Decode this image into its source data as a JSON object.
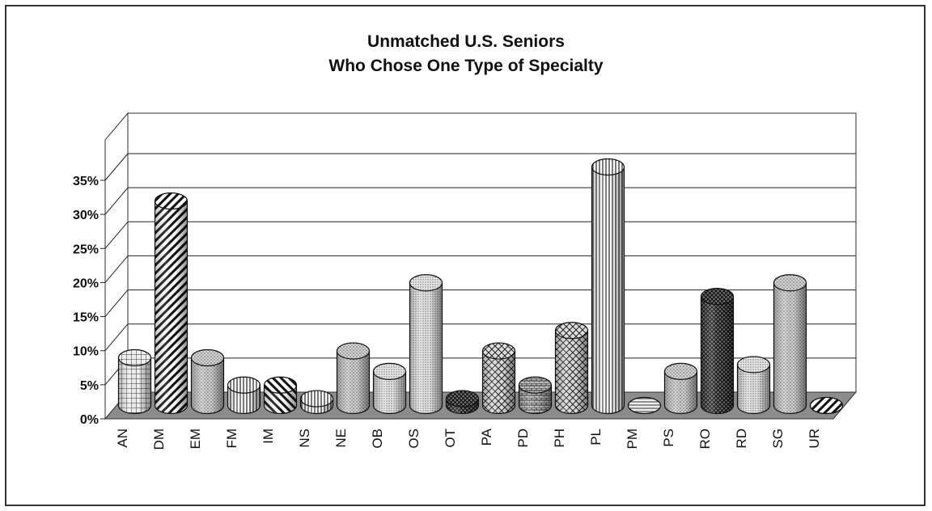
{
  "chart_data": {
    "type": "bar",
    "title_lines": [
      "Unmatched U.S. Seniors",
      "Who Chose One Type of Specialty"
    ],
    "categories": [
      "AN",
      "DM",
      "EM",
      "FM",
      "IM",
      "NS",
      "NE",
      "OB",
      "OS",
      "OT",
      "PA",
      "PD",
      "PH",
      "PL",
      "PM",
      "PS",
      "RO",
      "RD",
      "SG",
      "UR"
    ],
    "values": [
      7,
      30,
      7,
      3,
      3,
      1,
      8,
      5,
      18,
      1,
      8,
      3,
      11,
      35,
      0,
      5,
      16,
      6,
      18,
      0
    ],
    "ylim": [
      0,
      35
    ],
    "yticks": [
      "0%",
      "5%",
      "10%",
      "15%",
      "20%",
      "25%",
      "30%",
      "35%"
    ],
    "grid": true,
    "colors": {
      "frame": "#333333",
      "floor": "#8c8c8c",
      "back_wall": "#ffffff",
      "bar_light": "#e4e4e4",
      "bar_dark": "#555555"
    }
  }
}
